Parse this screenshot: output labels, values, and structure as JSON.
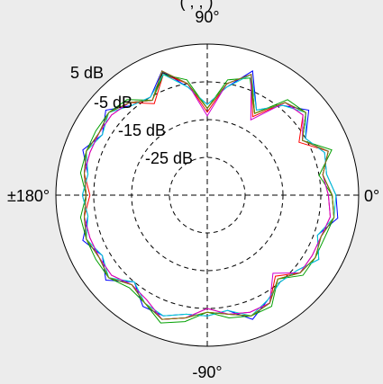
{
  "chart_data": {
    "type": "polar",
    "top_text": "(     ,      ,      )",
    "angle_labels": [
      "90°",
      "-90°",
      "±180°",
      "0°"
    ],
    "radial_labels": [
      "5 dB",
      "-5 dB",
      "-15 dB",
      "-25 dB"
    ],
    "radial_range_db": [
      -35,
      5
    ],
    "grid": true,
    "series": [
      {
        "color": "#000000",
        "points": [
          [
            0,
            -2
          ],
          [
            10,
            -4
          ],
          [
            20,
            -1
          ],
          [
            30,
            -6
          ],
          [
            40,
            -1
          ],
          [
            50,
            -3
          ],
          [
            60,
            -10
          ],
          [
            70,
            -1
          ],
          [
            80,
            -5
          ],
          [
            90,
            -12
          ],
          [
            100,
            -5
          ],
          [
            110,
            -0.5
          ],
          [
            120,
            -6
          ],
          [
            130,
            -3
          ],
          [
            140,
            -1
          ],
          [
            150,
            -2
          ],
          [
            160,
            -1
          ],
          [
            170,
            -2
          ],
          [
            180,
            -3
          ],
          [
            190,
            -2
          ],
          [
            200,
            -1
          ],
          [
            210,
            -2
          ],
          [
            220,
            -1
          ],
          [
            230,
            -4
          ],
          [
            240,
            -2
          ],
          [
            250,
            0
          ],
          [
            260,
            -2
          ],
          [
            270,
            -4
          ],
          [
            280,
            -3
          ],
          [
            290,
            -1
          ],
          [
            300,
            -2
          ],
          [
            310,
            -6
          ],
          [
            320,
            -3
          ],
          [
            330,
            -2
          ],
          [
            340,
            -3
          ],
          [
            350,
            -1
          ]
        ]
      },
      {
        "color": "#0000ff",
        "points": [
          [
            0,
            -1
          ],
          [
            10,
            -3
          ],
          [
            20,
            -2
          ],
          [
            30,
            -5
          ],
          [
            40,
            0
          ],
          [
            50,
            -4
          ],
          [
            60,
            -9
          ],
          [
            70,
            0
          ],
          [
            80,
            -6
          ],
          [
            90,
            -11
          ],
          [
            100,
            -6
          ],
          [
            110,
            0
          ],
          [
            120,
            -5
          ],
          [
            130,
            -4
          ],
          [
            140,
            0
          ],
          [
            150,
            -3
          ],
          [
            160,
            0
          ],
          [
            170,
            -3
          ],
          [
            180,
            -2
          ],
          [
            190,
            -3
          ],
          [
            200,
            0
          ],
          [
            210,
            -3
          ],
          [
            220,
            0
          ],
          [
            230,
            -5
          ],
          [
            240,
            -1
          ],
          [
            250,
            -1
          ],
          [
            260,
            -3
          ],
          [
            270,
            -3
          ],
          [
            280,
            -4
          ],
          [
            290,
            0
          ],
          [
            300,
            -3
          ],
          [
            310,
            -5
          ],
          [
            320,
            -4
          ],
          [
            330,
            -1
          ],
          [
            340,
            -4
          ],
          [
            350,
            0
          ]
        ]
      },
      {
        "color": "#ff0000",
        "points": [
          [
            0,
            -3
          ],
          [
            10,
            -4
          ],
          [
            20,
            -1
          ],
          [
            30,
            -7
          ],
          [
            40,
            -2
          ],
          [
            50,
            -3
          ],
          [
            60,
            -11
          ],
          [
            70,
            -1
          ],
          [
            80,
            -5
          ],
          [
            90,
            -13
          ],
          [
            100,
            -5
          ],
          [
            110,
            -1
          ],
          [
            120,
            -7
          ],
          [
            130,
            -3
          ],
          [
            140,
            -2
          ],
          [
            150,
            -2
          ],
          [
            160,
            -2
          ],
          [
            170,
            -2
          ],
          [
            180,
            -4
          ],
          [
            190,
            -2
          ],
          [
            200,
            -2
          ],
          [
            210,
            -2
          ],
          [
            220,
            -2
          ],
          [
            230,
            -4
          ],
          [
            240,
            -3
          ],
          [
            250,
            0
          ],
          [
            260,
            -2
          ],
          [
            270,
            -5
          ],
          [
            280,
            -3
          ],
          [
            290,
            -2
          ],
          [
            300,
            -2
          ],
          [
            310,
            -7
          ],
          [
            320,
            -3
          ],
          [
            330,
            -3
          ],
          [
            340,
            -3
          ],
          [
            350,
            -2
          ]
        ]
      },
      {
        "color": "#00a000",
        "points": [
          [
            0,
            -2
          ],
          [
            10,
            -5
          ],
          [
            20,
            0
          ],
          [
            30,
            -6
          ],
          [
            40,
            -1
          ],
          [
            50,
            -2
          ],
          [
            60,
            -10
          ],
          [
            70,
            -2
          ],
          [
            80,
            -4
          ],
          [
            90,
            -12
          ],
          [
            100,
            -4
          ],
          [
            110,
            -1
          ],
          [
            120,
            -6
          ],
          [
            130,
            -2
          ],
          [
            140,
            -1
          ],
          [
            150,
            -1
          ],
          [
            160,
            -1
          ],
          [
            170,
            -1
          ],
          [
            180,
            -3
          ],
          [
            190,
            -1
          ],
          [
            200,
            -1
          ],
          [
            210,
            -1
          ],
          [
            220,
            -1
          ],
          [
            230,
            -3
          ],
          [
            240,
            -2
          ],
          [
            250,
            1
          ],
          [
            260,
            -1
          ],
          [
            270,
            -4
          ],
          [
            280,
            -2
          ],
          [
            290,
            -1
          ],
          [
            300,
            -1
          ],
          [
            310,
            -6
          ],
          [
            320,
            -2
          ],
          [
            330,
            -2
          ],
          [
            340,
            -2
          ],
          [
            350,
            -1
          ]
        ]
      },
      {
        "color": "#00d0d0",
        "points": [
          [
            0,
            -1
          ],
          [
            10,
            -3
          ],
          [
            20,
            -2
          ],
          [
            30,
            -5
          ],
          [
            40,
            -1
          ],
          [
            50,
            -4
          ],
          [
            60,
            -9
          ],
          [
            70,
            -1
          ],
          [
            80,
            -6
          ],
          [
            90,
            -11
          ],
          [
            100,
            -6
          ],
          [
            110,
            -1
          ],
          [
            120,
            -5
          ],
          [
            130,
            -4
          ],
          [
            140,
            -1
          ],
          [
            150,
            -3
          ],
          [
            160,
            -1
          ],
          [
            170,
            -3
          ],
          [
            180,
            -2
          ],
          [
            190,
            -3
          ],
          [
            200,
            -1
          ],
          [
            210,
            -3
          ],
          [
            220,
            -1
          ],
          [
            230,
            -5
          ],
          [
            240,
            -2
          ],
          [
            250,
            -1
          ],
          [
            260,
            -3
          ],
          [
            270,
            -3
          ],
          [
            280,
            -4
          ],
          [
            290,
            -1
          ],
          [
            300,
            -3
          ],
          [
            310,
            -5
          ],
          [
            320,
            -4
          ],
          [
            330,
            -1
          ],
          [
            340,
            -4
          ],
          [
            350,
            -1
          ]
        ]
      },
      {
        "color": "#d000d0",
        "points": [
          [
            0,
            -3
          ],
          [
            10,
            -4
          ],
          [
            20,
            -1
          ],
          [
            30,
            -6
          ],
          [
            40,
            -2
          ],
          [
            50,
            -3
          ],
          [
            60,
            -12
          ],
          [
            70,
            -1
          ],
          [
            80,
            -5
          ],
          [
            90,
            -14
          ],
          [
            100,
            -5
          ],
          [
            110,
            0
          ],
          [
            120,
            -6
          ],
          [
            130,
            -3
          ],
          [
            140,
            -2
          ],
          [
            150,
            -2
          ],
          [
            160,
            -2
          ],
          [
            170,
            -2
          ],
          [
            180,
            -3
          ],
          [
            190,
            -2
          ],
          [
            200,
            -2
          ],
          [
            210,
            -2
          ],
          [
            220,
            -2
          ],
          [
            230,
            -4
          ],
          [
            240,
            -3
          ],
          [
            250,
            0
          ],
          [
            260,
            -2
          ],
          [
            270,
            -5
          ],
          [
            280,
            -3
          ],
          [
            290,
            -2
          ],
          [
            300,
            -2
          ],
          [
            310,
            -8
          ],
          [
            320,
            -3
          ],
          [
            330,
            -3
          ],
          [
            340,
            -3
          ],
          [
            350,
            -2
          ]
        ]
      },
      {
        "color": "#808000",
        "points": [
          [
            0,
            -2
          ],
          [
            10,
            -4
          ],
          [
            20,
            -1
          ],
          [
            30,
            -6
          ],
          [
            40,
            -1
          ],
          [
            50,
            -3
          ],
          [
            60,
            -10
          ],
          [
            70,
            -1
          ],
          [
            80,
            -5
          ],
          [
            90,
            -12
          ],
          [
            100,
            -5
          ],
          [
            110,
            0
          ],
          [
            120,
            -6
          ],
          [
            130,
            -3
          ],
          [
            140,
            -1
          ],
          [
            150,
            -2
          ],
          [
            160,
            -1
          ],
          [
            170,
            -2
          ],
          [
            180,
            -3
          ],
          [
            190,
            -2
          ],
          [
            200,
            -1
          ],
          [
            210,
            -2
          ],
          [
            220,
            -1
          ],
          [
            230,
            -4
          ],
          [
            240,
            -2
          ],
          [
            250,
            0
          ],
          [
            260,
            -2
          ],
          [
            270,
            -4
          ],
          [
            280,
            -3
          ],
          [
            290,
            -1
          ],
          [
            300,
            -2
          ],
          [
            310,
            -6
          ],
          [
            320,
            -3
          ],
          [
            330,
            -2
          ],
          [
            340,
            -3
          ],
          [
            350,
            -1
          ]
        ]
      }
    ]
  }
}
